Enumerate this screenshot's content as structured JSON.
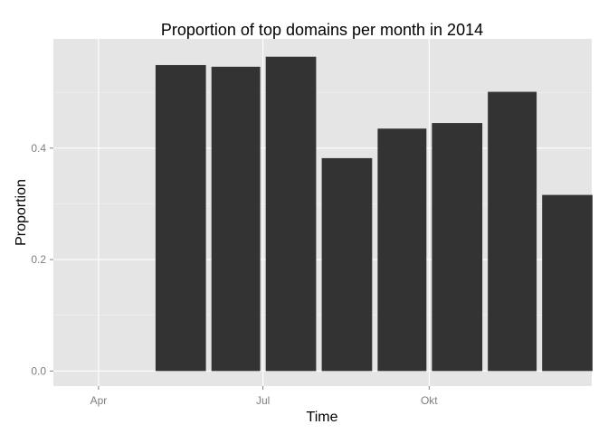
{
  "chart_data": {
    "type": "bar",
    "title": "Proportion of top domains per month in 2014",
    "xlabel": "Time",
    "ylabel": "Proportion",
    "x_dates": [
      "2014-05-01",
      "2014-06-01",
      "2014-07-01",
      "2014-08-01",
      "2014-09-01",
      "2014-10-01",
      "2014-11-01",
      "2014-12-01"
    ],
    "values": [
      0.549,
      0.546,
      0.564,
      0.382,
      0.435,
      0.445,
      0.501,
      0.316
    ],
    "x_ticks": [
      {
        "date": "2014-04-01",
        "label": "Apr"
      },
      {
        "date": "2014-07-01",
        "label": "Jul"
      },
      {
        "date": "2014-10-01",
        "label": "Okt"
      }
    ],
    "y_ticks": [
      {
        "value": 0.0,
        "label": "0.0"
      },
      {
        "value": 0.2,
        "label": "0.2"
      },
      {
        "value": 0.4,
        "label": "0.4"
      }
    ],
    "ylim": [
      -0.027,
      0.596
    ],
    "xlim": [
      "2014-03-07",
      "2014-12-30"
    ],
    "bar_color": "#333333",
    "panel_background": "#e5e5e5",
    "grid": true,
    "grid_color": "#f2f2f2",
    "legend": "none"
  }
}
